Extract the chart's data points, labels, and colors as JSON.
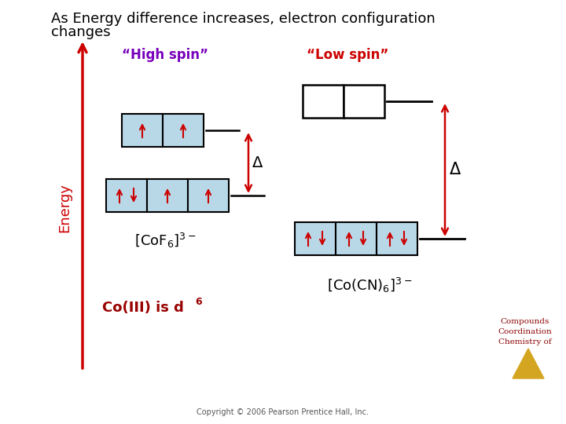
{
  "title_line1": "As Energy difference increases, electron configuration",
  "title_line2": "changes",
  "title_color": "#000000",
  "title_fontsize": 13,
  "bg_color": "#ffffff",
  "energy_label": "Energy",
  "energy_color": "#cc0000",
  "high_spin_label": "“High spin”",
  "high_spin_color": "#7700bb",
  "low_spin_label": "“Low spin”",
  "low_spin_color": "#cc0000",
  "co_label": "Co(III) is d",
  "co_sup": "6",
  "co_color": "#990000",
  "copyright": "Copyright © 2006 Pearson Prentice Hall, Inc.",
  "delta_color": "#000000",
  "box_fill_blue": "#b8d8e8",
  "box_fill_white": "#ffffff",
  "box_edge": "#000000",
  "arrow_color": "#cc0000",
  "line_color": "#000000",
  "watermark_lines": [
    "Chemistry of",
    "Coordination",
    "Compounds"
  ],
  "watermark_color": "#8b0000",
  "triangle_color": "#D4A520",
  "cof6_label": "$[\\mathrm{CoF_6}]^{3-}$",
  "cocn6_label": "$[\\mathrm{Co(CN)_6}]^{3-}$"
}
